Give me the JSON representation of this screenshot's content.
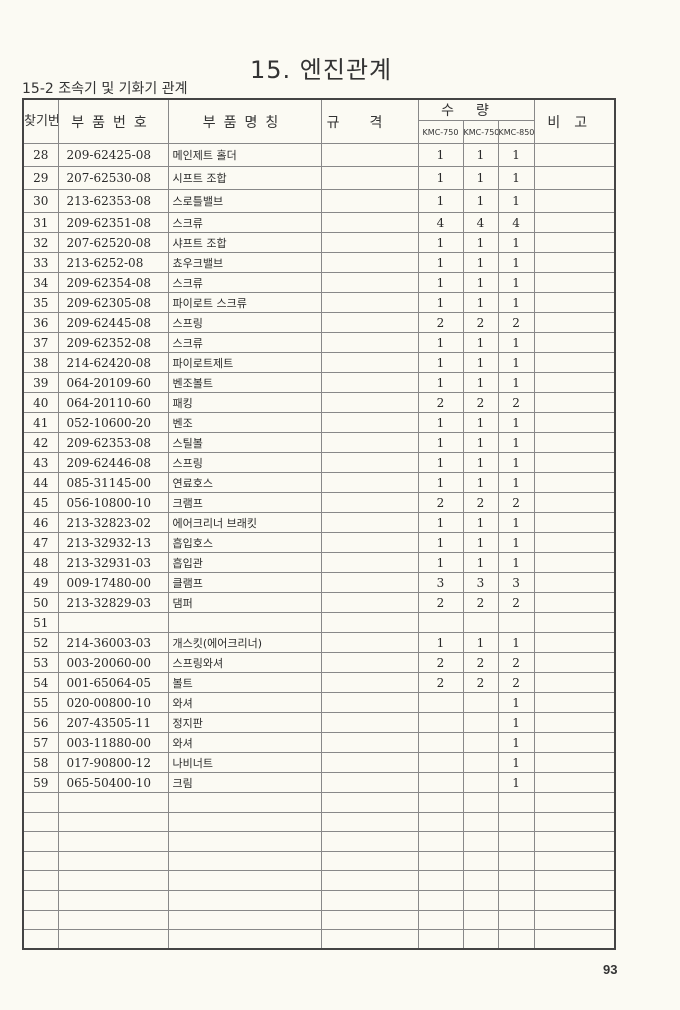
{
  "title": "15. 엔진관계",
  "subtitle": "15-2 조속기 및 기화기 관계",
  "headers": {
    "no": "찾기번호",
    "part_no": "부품번호",
    "part_name": "부품명칭",
    "spec": "규격",
    "qty": "수량",
    "models": [
      "KMC-750",
      "KMC-750S",
      "KMC-850"
    ],
    "remark": "비고"
  },
  "rows": [
    {
      "no": "28",
      "part_no": "209-62425-08",
      "name": "메인제트 홀더",
      "q": [
        "1",
        "1",
        "1"
      ]
    },
    {
      "no": "29",
      "part_no": "207-62530-08",
      "name": "시프트 조합",
      "q": [
        "1",
        "1",
        "1"
      ]
    },
    {
      "no": "30",
      "part_no": "213-62353-08",
      "name": "스로틀밸브",
      "q": [
        "1",
        "1",
        "1"
      ]
    },
    {
      "no": "31",
      "part_no": "209-62351-08",
      "name": "스크류",
      "q": [
        "4",
        "4",
        "4"
      ]
    },
    {
      "no": "32",
      "part_no": "207-62520-08",
      "name": "샤프트 조합",
      "q": [
        "1",
        "1",
        "1"
      ]
    },
    {
      "no": "33",
      "part_no": "213-6252-08",
      "name": "쵸우크밸브",
      "q": [
        "1",
        "1",
        "1"
      ]
    },
    {
      "no": "34",
      "part_no": "209-62354-08",
      "name": "스크류",
      "q": [
        "1",
        "1",
        "1"
      ]
    },
    {
      "no": "35",
      "part_no": "209-62305-08",
      "name": "파이로트 스크류",
      "q": [
        "1",
        "1",
        "1"
      ]
    },
    {
      "no": "36",
      "part_no": "209-62445-08",
      "name": "스프링",
      "q": [
        "2",
        "2",
        "2"
      ]
    },
    {
      "no": "37",
      "part_no": "209-62352-08",
      "name": "스크류",
      "q": [
        "1",
        "1",
        "1"
      ]
    },
    {
      "no": "38",
      "part_no": "214-62420-08",
      "name": "파이로트제트",
      "q": [
        "1",
        "1",
        "1"
      ]
    },
    {
      "no": "39",
      "part_no": "064-20109-60",
      "name": "벤조볼트",
      "q": [
        "1",
        "1",
        "1"
      ]
    },
    {
      "no": "40",
      "part_no": "064-20110-60",
      "name": "패킹",
      "q": [
        "2",
        "2",
        "2"
      ]
    },
    {
      "no": "41",
      "part_no": "052-10600-20",
      "name": "벤조",
      "q": [
        "1",
        "1",
        "1"
      ]
    },
    {
      "no": "42",
      "part_no": "209-62353-08",
      "name": "스틸볼",
      "q": [
        "1",
        "1",
        "1"
      ]
    },
    {
      "no": "43",
      "part_no": "209-62446-08",
      "name": "스프링",
      "q": [
        "1",
        "1",
        "1"
      ]
    },
    {
      "no": "44",
      "part_no": "085-31145-00",
      "name": "연료호스",
      "q": [
        "1",
        "1",
        "1"
      ]
    },
    {
      "no": "45",
      "part_no": "056-10800-10",
      "name": "크램프",
      "q": [
        "2",
        "2",
        "2"
      ]
    },
    {
      "no": "46",
      "part_no": "213-32823-02",
      "name": "에어크리너 브래킷",
      "q": [
        "1",
        "1",
        "1"
      ]
    },
    {
      "no": "47",
      "part_no": "213-32932-13",
      "name": "흡입호스",
      "q": [
        "1",
        "1",
        "1"
      ]
    },
    {
      "no": "48",
      "part_no": "213-32931-03",
      "name": "흡입관",
      "q": [
        "1",
        "1",
        "1"
      ]
    },
    {
      "no": "49",
      "part_no": "009-17480-00",
      "name": "클램프",
      "q": [
        "3",
        "3",
        "3"
      ]
    },
    {
      "no": "50",
      "part_no": "213-32829-03",
      "name": "댐퍼",
      "q": [
        "2",
        "2",
        "2"
      ]
    },
    {
      "no": "51",
      "part_no": "",
      "name": "",
      "q": [
        "",
        "",
        ""
      ]
    },
    {
      "no": "52",
      "part_no": "214-36003-03",
      "name": "개스킷(에어크리너)",
      "q": [
        "1",
        "1",
        "1"
      ]
    },
    {
      "no": "53",
      "part_no": "003-20060-00",
      "name": "스프링와셔",
      "q": [
        "2",
        "2",
        "2"
      ]
    },
    {
      "no": "54",
      "part_no": "001-65064-05",
      "name": "볼트",
      "q": [
        "2",
        "2",
        "2"
      ]
    },
    {
      "no": "55",
      "part_no": "020-00800-10",
      "name": "와셔",
      "q": [
        "",
        "",
        "1"
      ]
    },
    {
      "no": "56",
      "part_no": "207-43505-11",
      "name": "정지판",
      "q": [
        "",
        "",
        "1"
      ]
    },
    {
      "no": "57",
      "part_no": "003-11880-00",
      "name": "와셔",
      "q": [
        "",
        "",
        "1"
      ]
    },
    {
      "no": "58",
      "part_no": "017-90800-12",
      "name": "나비너트",
      "q": [
        "",
        "",
        "1"
      ]
    },
    {
      "no": "59",
      "part_no": "065-50400-10",
      "name": "크림",
      "q": [
        "",
        "",
        "1"
      ]
    }
  ],
  "page_number": "93"
}
